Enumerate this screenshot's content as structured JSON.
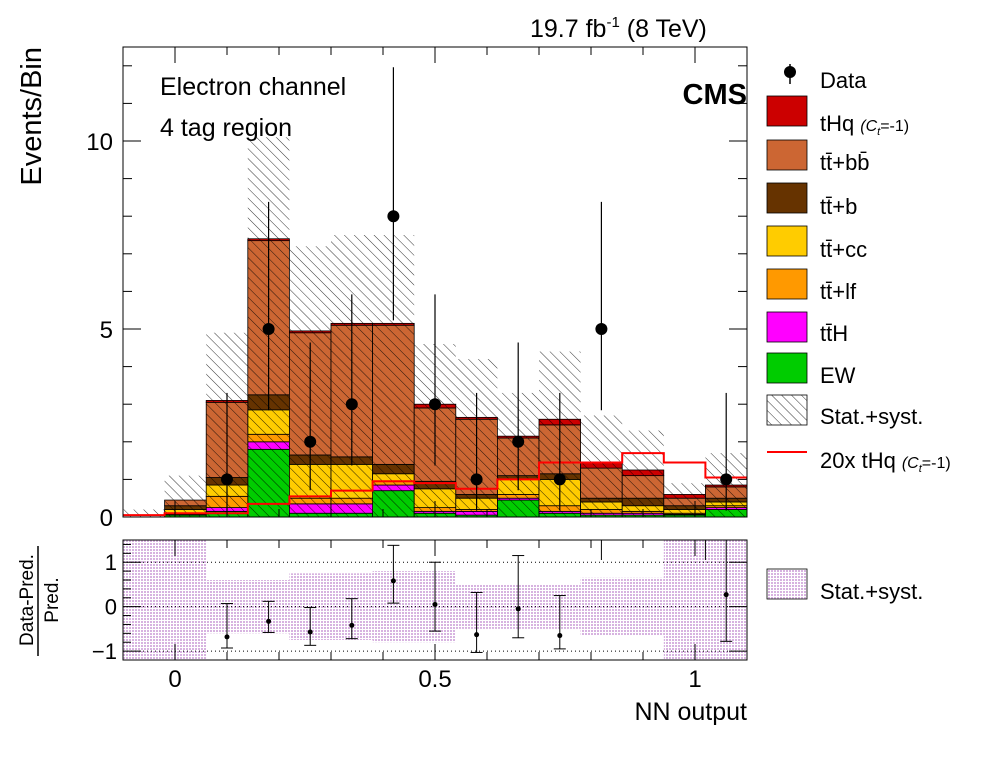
{
  "header": {
    "lumi": "19.7 fb",
    "lumi_sup": "-1",
    "energy": " (8 TeV)",
    "experiment": "CMS",
    "channel": "Electron channel",
    "region": "4 tag region"
  },
  "axes": {
    "ylabel_main": "Events/Bin",
    "ylabel_ratio_top": "Data-Pred.",
    "ylabel_ratio_bottom": "Pred.",
    "xlabel": "NN output"
  },
  "legend": {
    "data": "Data",
    "tHq": "tHq",
    "tHq_coupling": "(C",
    "tHq_coupling_sub": "t",
    "tHq_coupling_end": "=-1)",
    "ttbb": "tt̄+bb̄",
    "ttb": "tt̄+b",
    "ttcc": "tt̄+cc",
    "ttlf": "tt̄+lf",
    "ttH": "tt̄H",
    "EW": "EW",
    "unc": "Stat.+syst.",
    "tHq20": "20x tHq",
    "ratio_unc": "Stat.+syst."
  },
  "chart_data": [
    {
      "type": "bar",
      "subtype": "stacked-histogram",
      "title": "",
      "xlabel": "NN output",
      "ylabel": "Events/Bin",
      "xlim": [
        -0.1,
        1.1
      ],
      "ylim": [
        0,
        12.5
      ],
      "x_ticks": [
        0,
        0.5,
        1
      ],
      "x_tick_labels": [
        "0",
        "0.5",
        "1"
      ],
      "y_ticks": [
        0,
        5,
        10
      ],
      "y_tick_labels": [
        "0",
        "5",
        "10"
      ],
      "bin_edges": [
        -0.1,
        -0.02,
        0.06,
        0.14,
        0.22,
        0.3,
        0.38,
        0.46,
        0.54,
        0.62,
        0.7,
        0.78,
        0.86,
        0.94,
        1.02,
        1.1
      ],
      "series": [
        {
          "name": "EW",
          "color": "#00cc00",
          "values": [
            0,
            0.05,
            0.15,
            1.8,
            0.1,
            0.1,
            0.7,
            0.1,
            0.05,
            0.45,
            0.1,
            0.05,
            0.05,
            0.05,
            0.2
          ]
        },
        {
          "name": "tt̄H",
          "color": "#ff00ff",
          "values": [
            0,
            0.02,
            0.1,
            0.2,
            0.25,
            0.25,
            0.15,
            0.05,
            0.1,
            0.05,
            0.05,
            0.05,
            0.05,
            0.02,
            0.05
          ]
        },
        {
          "name": "tt̄+lf",
          "color": "#ff9900",
          "values": [
            0,
            0.03,
            0.3,
            0.2,
            0.15,
            0.15,
            0.1,
            0.1,
            0.05,
            0.1,
            0.15,
            0.1,
            0.05,
            0.03,
            0.05
          ]
        },
        {
          "name": "tt̄+cc",
          "color": "#ffcc00",
          "values": [
            0,
            0.1,
            0.3,
            0.65,
            0.9,
            0.9,
            0.2,
            0.5,
            0.3,
            0.4,
            0.7,
            0.2,
            0.15,
            0.1,
            0.1
          ]
        },
        {
          "name": "tt̄+b",
          "color": "#663300",
          "values": [
            0,
            0.1,
            0.2,
            0.4,
            0.25,
            0.2,
            0.25,
            0.2,
            0.1,
            0.1,
            0.15,
            0.1,
            0.2,
            0.1,
            0.1
          ]
        },
        {
          "name": "tt̄+bb̄",
          "color": "#cc6633",
          "values": [
            0,
            0.15,
            2.0,
            4.1,
            3.25,
            3.5,
            3.7,
            1.95,
            2.0,
            1.0,
            1.3,
            0.8,
            0.6,
            0.2,
            0.3
          ]
        },
        {
          "name": "tHq (Ct=-1)",
          "color": "#cc0000",
          "values": [
            0,
            0.0,
            0.05,
            0.05,
            0.05,
            0.05,
            0.05,
            0.1,
            0.05,
            0.05,
            0.15,
            0.15,
            0.15,
            0.1,
            0.05
          ]
        }
      ],
      "unc_band": {
        "name": "Stat.+syst.",
        "lower": [
          0,
          0,
          0,
          0,
          0,
          0,
          0,
          0,
          0,
          0,
          0,
          0,
          0,
          0,
          0
        ],
        "upper": [
          0.2,
          1.1,
          4.9,
          10.1,
          7.2,
          7.5,
          7.5,
          4.6,
          4.2,
          3.3,
          4.4,
          2.7,
          2.3,
          0.9,
          1.7
        ]
      },
      "overlay": {
        "name": "20x tHq (Ct=-1)",
        "color": "#ff0000",
        "values": [
          0.05,
          0.1,
          0.1,
          0.35,
          0.55,
          0.7,
          0.95,
          0.9,
          0.75,
          1.0,
          1.45,
          1.45,
          1.7,
          1.45,
          1.05
        ]
      },
      "data": {
        "name": "Data",
        "x": [
          0.1,
          0.18,
          0.26,
          0.34,
          0.42,
          0.5,
          0.58,
          0.66,
          0.74,
          0.82,
          1.06
        ],
        "y": [
          1,
          5,
          2,
          3,
          8,
          3,
          1,
          2,
          1,
          5,
          1
        ],
        "err_low": [
          0.83,
          2.16,
          1.29,
          1.63,
          2.77,
          1.63,
          0.83,
          1.29,
          0.83,
          2.16,
          0.83
        ],
        "err_high": [
          2.3,
          3.38,
          2.64,
          2.92,
          3.96,
          2.92,
          2.3,
          2.64,
          2.3,
          3.38,
          2.3
        ]
      }
    },
    {
      "type": "scatter",
      "subtype": "ratio",
      "xlabel": "NN output",
      "ylabel": "Data-Pred. / Pred.",
      "xlim": [
        -0.1,
        1.1
      ],
      "ylim": [
        -1.2,
        1.5
      ],
      "y_ticks": [
        -1,
        0,
        1
      ],
      "y_tick_labels": [
        "−1",
        "0",
        "1"
      ],
      "unc_band": {
        "bin_edges": [
          -0.1,
          -0.02,
          0.06,
          0.14,
          0.22,
          0.3,
          0.38,
          0.46,
          0.54,
          0.62,
          0.7,
          0.78,
          0.86,
          0.94,
          1.02,
          1.1
        ],
        "lower": [
          -1.2,
          -1.2,
          -0.6,
          -0.6,
          -0.75,
          -0.75,
          -0.8,
          -0.8,
          -0.5,
          -0.5,
          -0.5,
          -0.65,
          -0.65,
          -1.2,
          -1.2
        ],
        "upper": [
          1.5,
          1.5,
          0.6,
          0.6,
          0.75,
          0.75,
          0.8,
          0.8,
          0.5,
          0.5,
          0.5,
          0.65,
          0.65,
          1.5,
          1.5
        ]
      },
      "points": {
        "x": [
          0.1,
          0.18,
          0.26,
          0.34,
          0.42,
          0.5,
          0.58,
          0.66,
          0.74,
          1.06
        ],
        "y": [
          -0.68,
          -0.33,
          -0.57,
          -0.42,
          0.58,
          0.05,
          -0.63,
          -0.05,
          -0.65,
          0.27
        ],
        "err_low": [
          0.25,
          0.25,
          0.3,
          0.3,
          0.5,
          0.6,
          0.4,
          0.65,
          0.3,
          1.05
        ],
        "err_high": [
          0.75,
          0.45,
          0.55,
          0.6,
          0.8,
          0.95,
          0.95,
          1.2,
          0.9,
          1.5
        ]
      },
      "offscale_markers_x": [
        0.82,
        1.02
      ]
    }
  ]
}
